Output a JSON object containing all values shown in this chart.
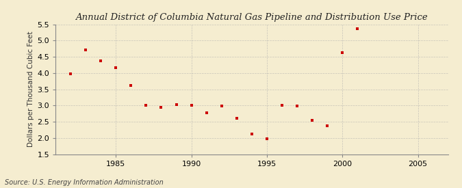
{
  "title": "Annual District of Columbia Natural Gas Pipeline and Distribution Use Price",
  "ylabel": "Dollars per Thousand Cubic Feet",
  "source": "Source: U.S. Energy Information Administration",
  "xlim": [
    1981,
    2007
  ],
  "ylim": [
    1.5,
    5.5
  ],
  "xticks": [
    1985,
    1990,
    1995,
    2000,
    2005
  ],
  "yticks": [
    1.5,
    2.0,
    2.5,
    3.0,
    3.5,
    4.0,
    4.5,
    5.0,
    5.5
  ],
  "background_color": "#F5EDD0",
  "marker_color": "#CC0000",
  "grid_color": "#AAAAAA",
  "title_fontsize": 9.5,
  "ylabel_fontsize": 7.5,
  "source_fontsize": 7,
  "tick_fontsize": 8,
  "data": [
    [
      1982,
      3.97
    ],
    [
      1983,
      4.72
    ],
    [
      1984,
      4.38
    ],
    [
      1985,
      4.17
    ],
    [
      1986,
      3.62
    ],
    [
      1987,
      3.01
    ],
    [
      1988,
      2.95
    ],
    [
      1989,
      3.02
    ],
    [
      1990,
      3.01
    ],
    [
      1991,
      2.78
    ],
    [
      1992,
      2.98
    ],
    [
      1993,
      2.6
    ],
    [
      1994,
      2.12
    ],
    [
      1995,
      1.98
    ],
    [
      1996,
      3.01
    ],
    [
      1997,
      2.98
    ],
    [
      1998,
      2.55
    ],
    [
      1999,
      2.37
    ],
    [
      2000,
      4.62
    ],
    [
      2001,
      5.36
    ]
  ]
}
